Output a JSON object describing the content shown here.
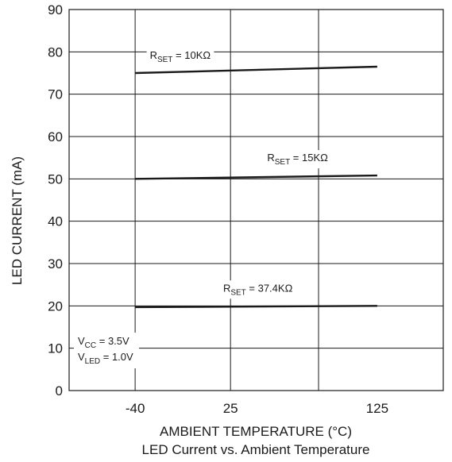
{
  "chart_data": {
    "type": "line",
    "title": "LED Current vs. Ambient Temperature",
    "xlabel": "AMBIENT TEMPERATURE (°C)",
    "ylabel": "LED CURRENT (mA)",
    "xlim": [
      -85,
      170
    ],
    "ylim": [
      0,
      90
    ],
    "x_ticks": [
      -40,
      25,
      125
    ],
    "y_ticks": [
      0,
      10,
      20,
      30,
      40,
      50,
      60,
      70,
      80,
      90
    ],
    "x_gridlines": [
      -40,
      25,
      85
    ],
    "grid": true,
    "series": [
      {
        "name": "RSET = 10KΩ",
        "label_main": "R",
        "label_sub": "SET",
        "label_rest": " = 10KΩ",
        "x": [
          -40,
          125
        ],
        "y": [
          75,
          76.5
        ]
      },
      {
        "name": "RSET = 15KΩ",
        "label_main": "R",
        "label_sub": "SET",
        "label_rest": " = 15KΩ",
        "x": [
          -40,
          125
        ],
        "y": [
          50,
          50.8
        ]
      },
      {
        "name": "RSET = 37.4KΩ",
        "label_main": "R",
        "label_sub": "SET",
        "label_rest": " = 37.4KΩ",
        "x": [
          -40,
          125
        ],
        "y": [
          19.7,
          20
        ]
      }
    ],
    "conditions": [
      {
        "main": "V",
        "sub": "CC",
        "rest": " = 3.5V"
      },
      {
        "main": "V",
        "sub": "LED",
        "rest": " = 1.0V"
      }
    ]
  }
}
